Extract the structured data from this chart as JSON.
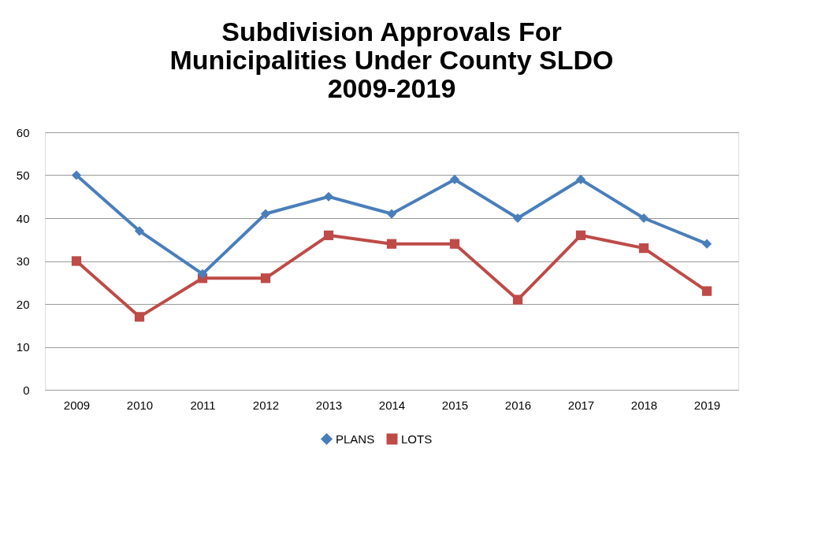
{
  "chart_data": {
    "type": "line",
    "title": [
      "Subdivision Approvals For",
      "Municipalities Under County SLDO",
      "2009-2019"
    ],
    "categories": [
      "2009",
      "2010",
      "2011",
      "2012",
      "2013",
      "2014",
      "2015",
      "2016",
      "2017",
      "2018",
      "2019"
    ],
    "series": [
      {
        "name": "PLANS",
        "color": "#4a7ebb",
        "marker": "diamond",
        "values": [
          50,
          37,
          27,
          41,
          45,
          41,
          49,
          40,
          49,
          40,
          34
        ]
      },
      {
        "name": "LOTS",
        "color": "#be4b48",
        "marker": "square",
        "values": [
          30,
          17,
          26,
          26,
          36,
          34,
          34,
          21,
          36,
          33,
          23
        ]
      }
    ],
    "ylim": [
      0,
      60
    ],
    "yticks": [
      0,
      10,
      20,
      30,
      40,
      50,
      60
    ],
    "grid": "y",
    "legend": "bottom",
    "line_style": "solid"
  }
}
